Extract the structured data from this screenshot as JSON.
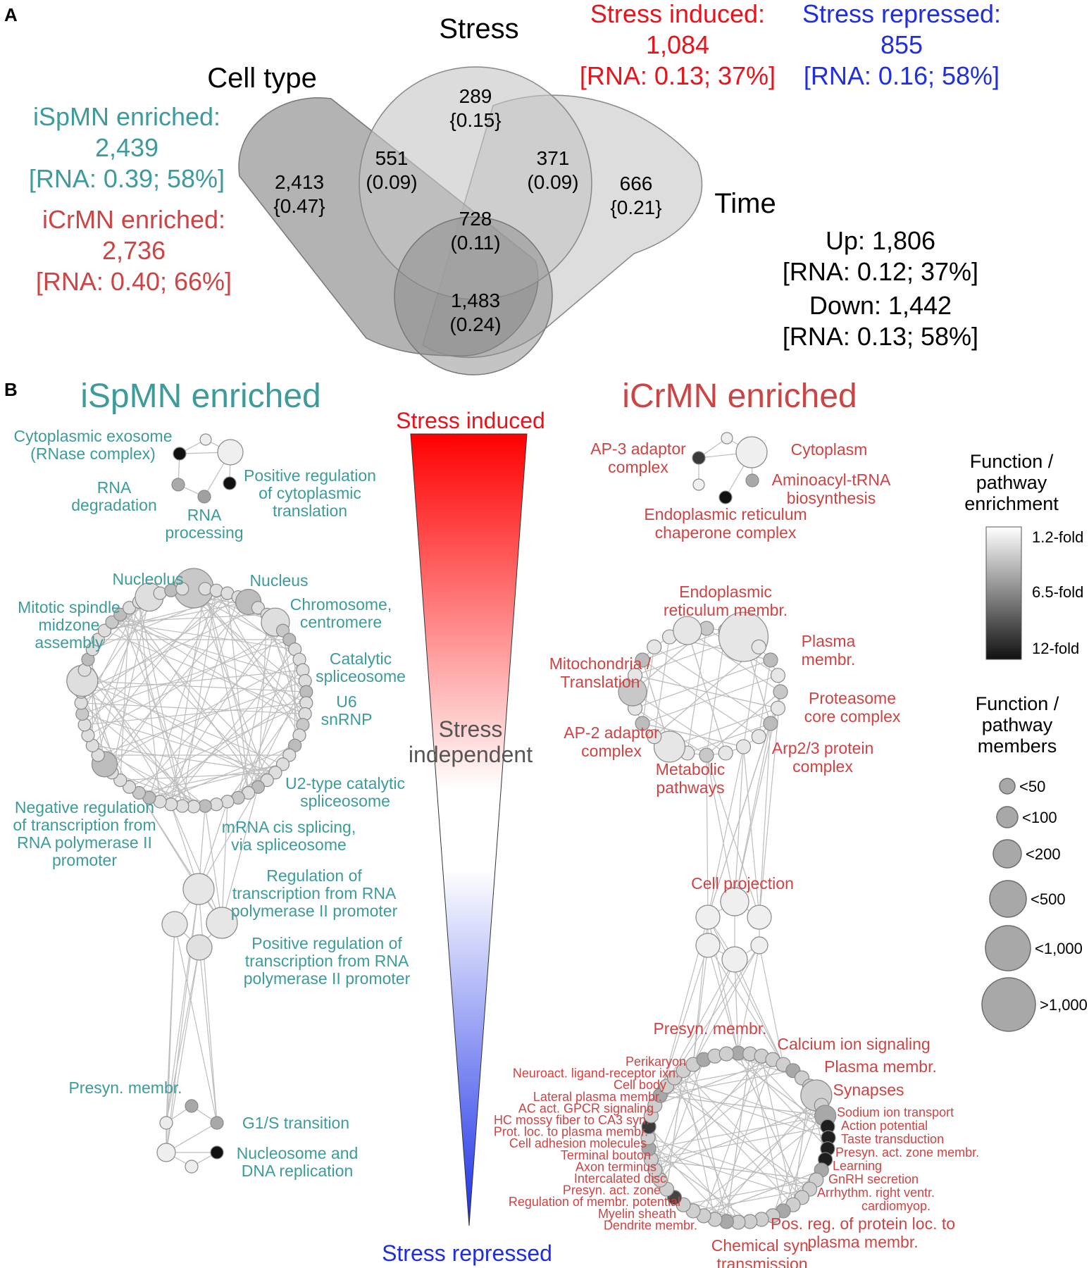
{
  "panel_a": {
    "letter": "A",
    "circle_labels": {
      "stress": "Stress",
      "cell_type": "Cell type",
      "time": "Time"
    },
    "regions": {
      "cell_only": {
        "count": "2,413",
        "ratio": "{0.47}"
      },
      "stress_only": {
        "count": "289",
        "ratio": "{0.15}"
      },
      "time_only": {
        "count": "666",
        "ratio": "{0.21}"
      },
      "cell_stress": {
        "count": "551",
        "ratio": "(0.09)"
      },
      "stress_time": {
        "count": "371",
        "ratio": "(0.09)"
      },
      "all_three": {
        "count": "728",
        "ratio": "(0.11)"
      },
      "cell_time": {
        "count": "1,483",
        "ratio": "(0.24)"
      }
    },
    "cell_type_side": {
      "ispmn": {
        "line1": "iSpMN enriched:",
        "line2": "2,439",
        "line3": "[RNA: 0.39; 58%]",
        "color": "#3d9b9b"
      },
      "icrmn": {
        "line1": "iCrMN enriched:",
        "line2": "2,736",
        "line3": "[RNA: 0.40; 66%]",
        "color": "#cc4444"
      }
    },
    "stress_side": {
      "induced": {
        "line1": "Stress induced:",
        "line2": "1,084",
        "line3": "[RNA: 0.13; 37%]",
        "color": "#e8141c"
      },
      "repressed": {
        "line1": "Stress repressed:",
        "line2": "855",
        "line3": "[RNA: 0.16; 58%]",
        "color": "#1e2ee0"
      }
    },
    "time_side": {
      "up": "Up: 1,806",
      "up_rna": "[RNA: 0.12; 37%]",
      "down": "Down: 1,442",
      "down_rna": "[RNA: 0.13; 58%]"
    }
  },
  "panel_b": {
    "letter": "B",
    "title_left": "iSpMN enriched",
    "title_right": "iCrMN enriched",
    "color_left": "#3d9b9b",
    "color_right": "#cc4444",
    "gradient": {
      "top_label": "Stress induced",
      "middle_line1": "Stress",
      "middle_line2": "independent",
      "bottom_label": "Stress repressed",
      "top_color": "#ff0000",
      "bottom_color": "#1a2fe6"
    },
    "left_labels": {
      "cytoplasmic_exosome": [
        "Cytoplasmic exosome",
        "(RNase complex)"
      ],
      "rna_degradation": [
        "RNA",
        "degradation"
      ],
      "rna_processing": [
        "RNA",
        "processing"
      ],
      "positive_reg_translation": [
        "Positive regulation",
        "of cytoplasmic",
        "translation"
      ],
      "nucleolus": [
        "Nucleolus"
      ],
      "nucleus": [
        "Nucleus"
      ],
      "chromosome": [
        "Chromosome,",
        "centromere"
      ],
      "mitotic_spindle": [
        "Mitotic spindle",
        "midzone",
        "assembly"
      ],
      "catalytic_spliceosome": [
        "Catalytic",
        "spliceosome"
      ],
      "u6": [
        "U6",
        "snRNP"
      ],
      "u2": [
        "U2-type catalytic",
        "spliceosome"
      ],
      "negative_reg": [
        "Negative regulation",
        "of transcription from",
        "RNA polymerase II",
        "promoter"
      ],
      "mrna_splicing": [
        "mRNA cis splicing,",
        "via spliceosome"
      ],
      "reg_transcription": [
        "Regulation of",
        "transcription from RNA",
        "polymerase II promoter"
      ],
      "pos_reg_transcription": [
        "Positive regulation of",
        "transcription from RNA",
        "polymerase II promoter"
      ],
      "presyn": [
        "Presyn. membr."
      ],
      "g1s": [
        "G1/S transition"
      ],
      "nucleosome": [
        "Nucleosome and",
        "DNA replication"
      ]
    },
    "right_labels": {
      "ap3": [
        "AP-3 adaptor",
        "complex"
      ],
      "cytoplasm": [
        "Cytoplasm"
      ],
      "aminoacyl": [
        "Aminoacyl-tRNA",
        "biosynthesis"
      ],
      "er_chaperone": [
        "Endoplasmic reticulum",
        "chaperone complex"
      ],
      "er_membr": [
        "Endoplasmic",
        "reticulum membr."
      ],
      "plasma_membr_top": [
        "Plasma",
        "membr."
      ],
      "mito": [
        "Mitochondria /",
        "Translation"
      ],
      "proteasome": [
        "Proteasome",
        "core complex"
      ],
      "ap2": [
        "AP-2 adaptor",
        "complex"
      ],
      "arp23": [
        "Arp2/3 protein",
        "complex"
      ],
      "metabolic": [
        "Metabolic",
        "pathways"
      ],
      "cell_projection": [
        "Cell projection"
      ],
      "presyn_membr": [
        "Presyn. membr."
      ],
      "calcium": [
        "Calcium ion signaling"
      ],
      "plasma_membr_bottom": [
        "Plasma membr."
      ],
      "synapses": [
        "Synapses"
      ],
      "bottom_left_list": [
        "Perikaryon",
        "Neuroact. ligand-receptor ixn.",
        "Cell body",
        "Lateral plasma membr.",
        "AC act. GPCR signaling",
        "HC mossy fiber to CA3 syn.",
        "Prot. loc. to plasma membr.",
        "Cell adhesion molecules",
        "Terminal bouton",
        "Axon terminus",
        "Intercalated disc",
        "Presyn. act. zone",
        "Regulation of membr. potential",
        "Myelin sheath",
        "Dendrite membr."
      ],
      "bottom_right_list": [
        "Sodium ion transport",
        "Action potential",
        "Taste transduction",
        "Presyn. act. zone membr.",
        "Learning",
        "GnRH secretion",
        "Arrhythm. right ventr.",
        "cardiomyop."
      ],
      "pos_reg_protein": [
        "Pos. reg. of protein loc. to",
        "plasma membr."
      ],
      "chemical_syn": [
        "Chemical syn.",
        "transmission"
      ]
    },
    "legend": {
      "enrichment_title": [
        "Function /",
        "pathway",
        "enrichment"
      ],
      "enrichment_ticks": [
        "1.2-fold",
        "6.5-fold",
        "12-fold"
      ],
      "members_title": [
        "Function /",
        "pathway",
        "members"
      ],
      "members_sizes": [
        "<50",
        "<100",
        "<200",
        "<500",
        "<1,000",
        ">1,000"
      ]
    }
  }
}
